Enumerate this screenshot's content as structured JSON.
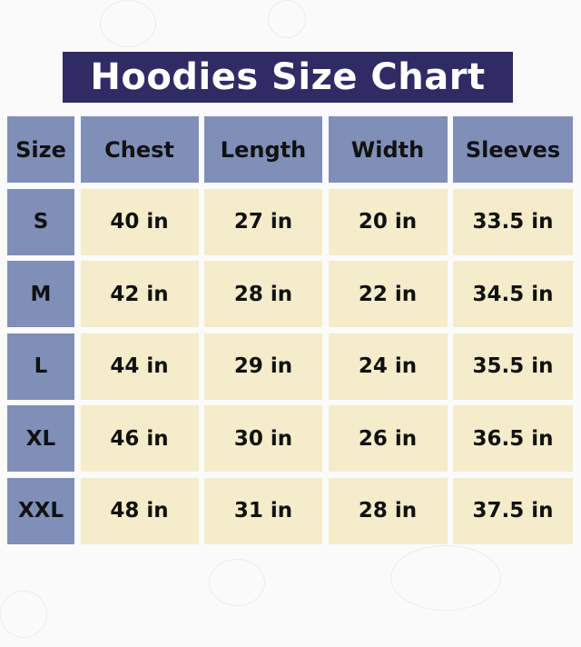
{
  "title": "Hoodies Size Chart",
  "colors": {
    "title_bg": "#302b64",
    "header_bg": "#7f8fb8",
    "cell_bg": "#f4ecca"
  },
  "table": {
    "headers": [
      "Size",
      "Chest",
      "Length",
      "Width",
      "Sleeves"
    ],
    "rows": [
      [
        "S",
        "40 in",
        "27 in",
        "20 in",
        "33.5 in"
      ],
      [
        "M",
        "42 in",
        "28 in",
        "22 in",
        "34.5 in"
      ],
      [
        "L",
        "44 in",
        "29 in",
        "24 in",
        "35.5 in"
      ],
      [
        "XL",
        "46 in",
        "30 in",
        "26 in",
        "36.5 in"
      ],
      [
        "XXL",
        "48 in",
        "31 in",
        "28 in",
        "37.5 in"
      ]
    ]
  }
}
